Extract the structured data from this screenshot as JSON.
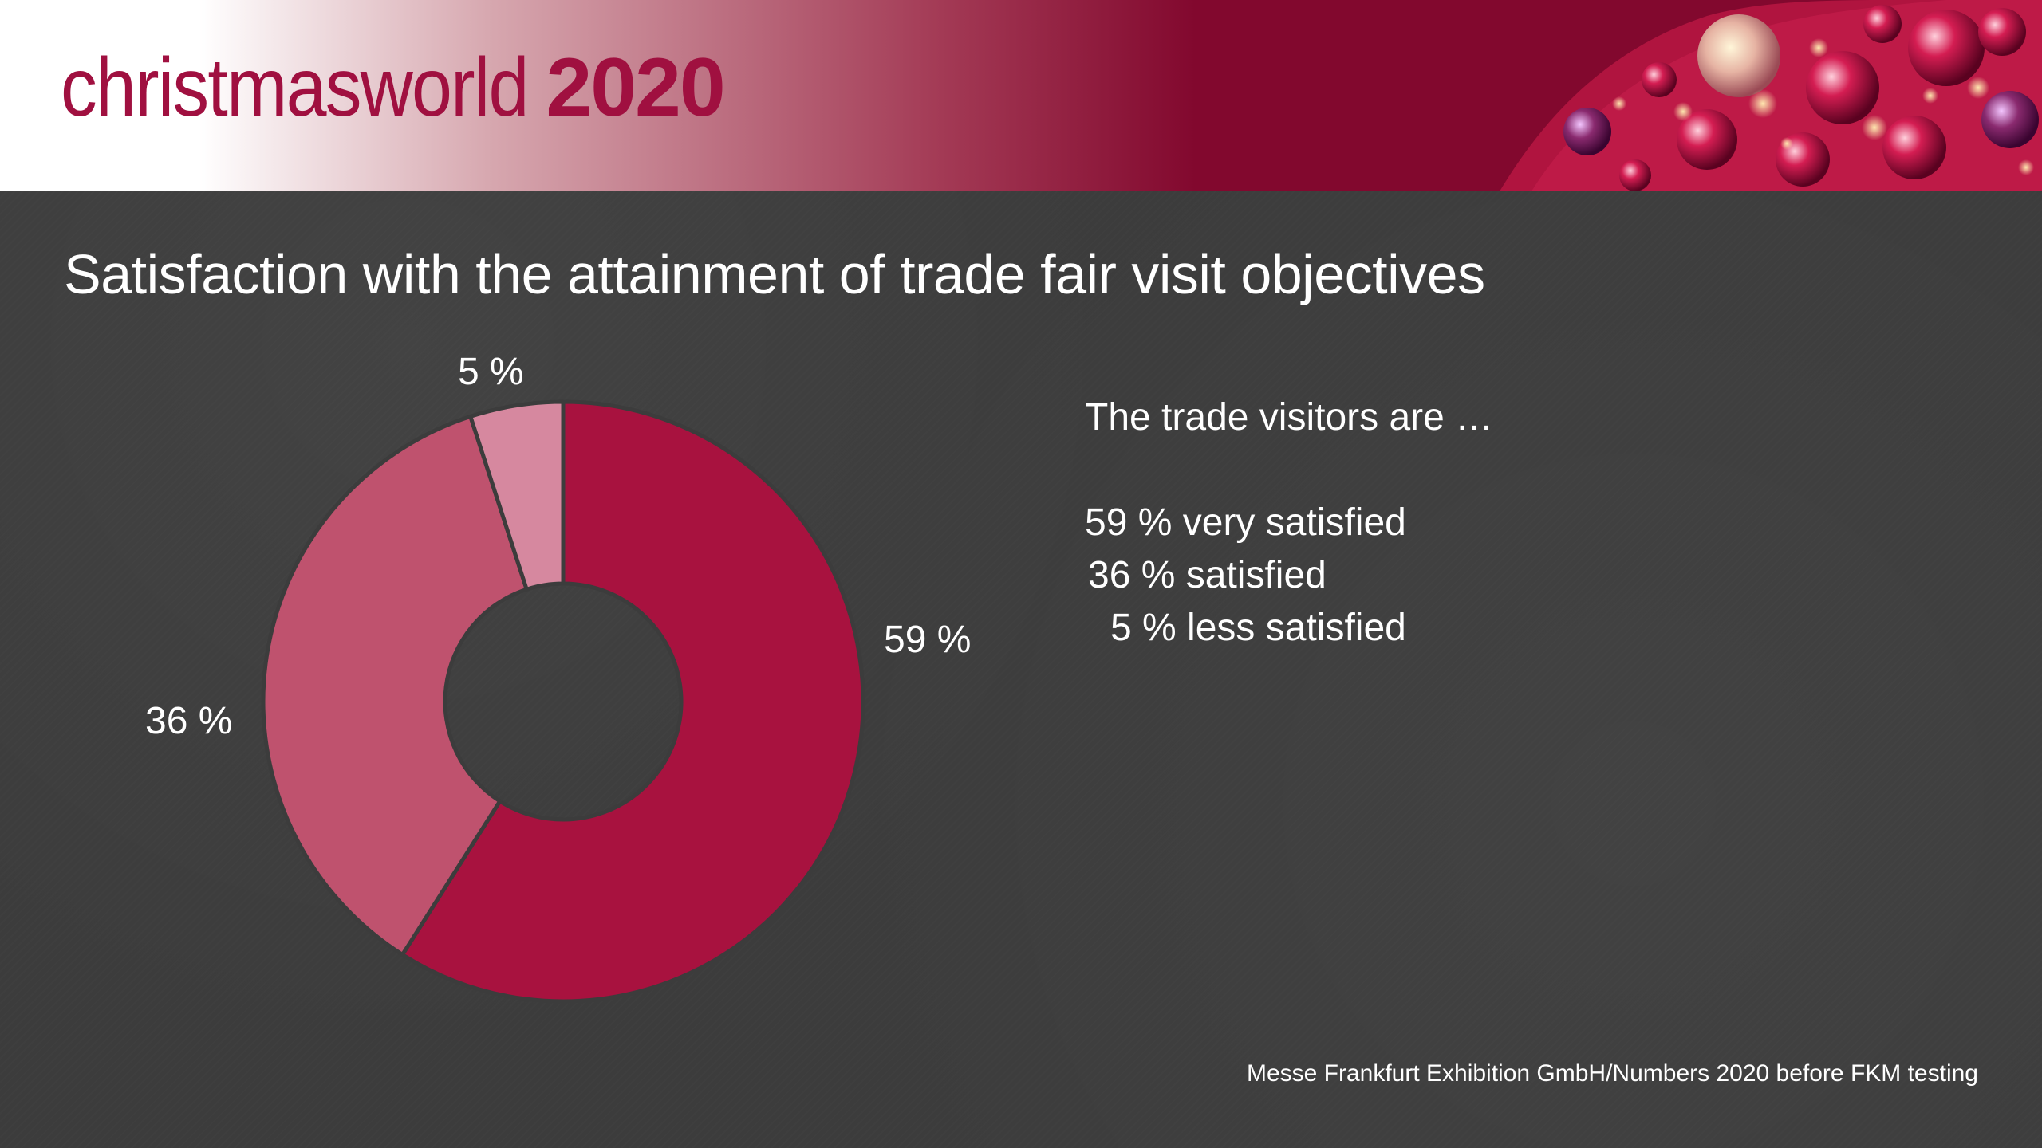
{
  "header": {
    "logo_word": "christmasworld",
    "logo_year": "2020"
  },
  "title": "Satisfaction with the attainment of trade fair visit objectives",
  "chart_data": {
    "type": "pie",
    "donut": true,
    "slices": [
      {
        "label": "59 %",
        "value": 59,
        "color": "#a8123f"
      },
      {
        "label": "36 %",
        "value": 36,
        "color": "#bf526e"
      },
      {
        "label": "5 %",
        "value": 5,
        "color": "#d6889f"
      }
    ],
    "start_angle_deg": 0,
    "direction": "clockwise",
    "background_color": "#3c3c3c"
  },
  "info": {
    "intro": "The trade visitors are …",
    "lines": [
      "59 % very satisfied",
      "36 % satisfied",
      "5 % less satisfied"
    ]
  },
  "source": "Messe Frankfurt Exhibition GmbH/Numbers 2020 before FKM testing"
}
